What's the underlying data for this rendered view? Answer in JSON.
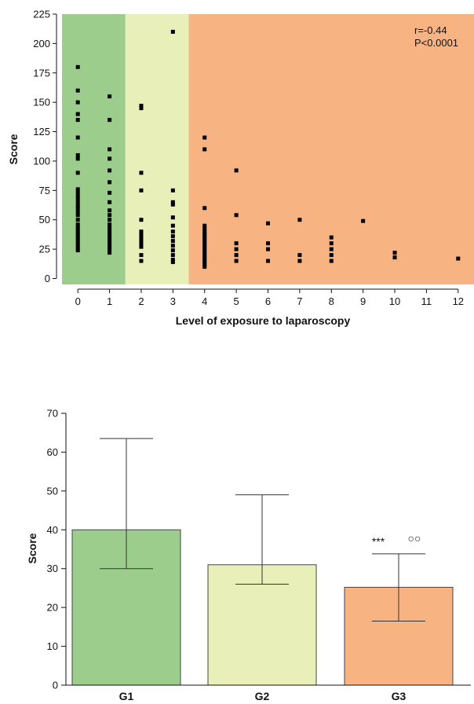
{
  "chart_data": [
    {
      "type": "scatter",
      "xlabel": "Level of exposure to laparoscopy",
      "ylabel": "Score",
      "xlim": [
        -0.5,
        12.5
      ],
      "ylim": [
        -5,
        225
      ],
      "xticks": [
        "0",
        "1",
        "2",
        "3",
        "4",
        "5",
        "6",
        "7",
        "8",
        "9",
        "10",
        "11",
        "12"
      ],
      "yticks": [
        "0",
        "25",
        "50",
        "75",
        "100",
        "125",
        "150",
        "175",
        "200",
        "225"
      ],
      "grid": false,
      "annotations": [
        "r=-0.44",
        "P<0.0001"
      ],
      "regions": [
        {
          "from": -0.5,
          "to": 1.5,
          "color": "#9ccd8d"
        },
        {
          "from": 1.5,
          "to": 3.5,
          "color": "#e9efb9"
        },
        {
          "from": 3.5,
          "to": 12.5,
          "color": "#f7b482"
        }
      ],
      "series": [
        {
          "color": "#000000",
          "points": [
            [
              0,
              180
            ],
            [
              0,
              160
            ],
            [
              0,
              150
            ],
            [
              0,
              140
            ],
            [
              0,
              135
            ],
            [
              0,
              120
            ],
            [
              0,
              105
            ],
            [
              0,
              102
            ],
            [
              0,
              90
            ],
            [
              0,
              76
            ],
            [
              0,
              73
            ],
            [
              0,
              70
            ],
            [
              0,
              68
            ],
            [
              0,
              65
            ],
            [
              0,
              62
            ],
            [
              0,
              60
            ],
            [
              0,
              57
            ],
            [
              0,
              54
            ],
            [
              0,
              50
            ],
            [
              0,
              46
            ],
            [
              0,
              44
            ],
            [
              0,
              42
            ],
            [
              0,
              40
            ],
            [
              0,
              38
            ],
            [
              0,
              36
            ],
            [
              0,
              34
            ],
            [
              0,
              32
            ],
            [
              0,
              30
            ],
            [
              0,
              28
            ],
            [
              0,
              26
            ],
            [
              0,
              24
            ],
            [
              1,
              155
            ],
            [
              1,
              135
            ],
            [
              1,
              110
            ],
            [
              1,
              102
            ],
            [
              1,
              92
            ],
            [
              1,
              82
            ],
            [
              1,
              73
            ],
            [
              1,
              65
            ],
            [
              1,
              58
            ],
            [
              1,
              54
            ],
            [
              1,
              50
            ],
            [
              1,
              46
            ],
            [
              1,
              44
            ],
            [
              1,
              42
            ],
            [
              1,
              40
            ],
            [
              1,
              38
            ],
            [
              1,
              36
            ],
            [
              1,
              34
            ],
            [
              1,
              32
            ],
            [
              1,
              30
            ],
            [
              1,
              28
            ],
            [
              1,
              26
            ],
            [
              1,
              24
            ],
            [
              1,
              22
            ],
            [
              2,
              147
            ],
            [
              2,
              145
            ],
            [
              2,
              90
            ],
            [
              2,
              75
            ],
            [
              2,
              50
            ],
            [
              2,
              40
            ],
            [
              2,
              37
            ],
            [
              2,
              35
            ],
            [
              2,
              32
            ],
            [
              2,
              30
            ],
            [
              2,
              27
            ],
            [
              2,
              20
            ],
            [
              2,
              15
            ],
            [
              3,
              210
            ],
            [
              3,
              75
            ],
            [
              3,
              65
            ],
            [
              3,
              63
            ],
            [
              3,
              52
            ],
            [
              3,
              45
            ],
            [
              3,
              40
            ],
            [
              3,
              36
            ],
            [
              3,
              32
            ],
            [
              3,
              28
            ],
            [
              3,
              24
            ],
            [
              3,
              20
            ],
            [
              3,
              16
            ],
            [
              3,
              14
            ],
            [
              4,
              120
            ],
            [
              4,
              110
            ],
            [
              4,
              60
            ],
            [
              4,
              45
            ],
            [
              4,
              42
            ],
            [
              4,
              40
            ],
            [
              4,
              38
            ],
            [
              4,
              36
            ],
            [
              4,
              34
            ],
            [
              4,
              32
            ],
            [
              4,
              30
            ],
            [
              4,
              28
            ],
            [
              4,
              26
            ],
            [
              4,
              24
            ],
            [
              4,
              22
            ],
            [
              4,
              20
            ],
            [
              4,
              18
            ],
            [
              4,
              16
            ],
            [
              4,
              14
            ],
            [
              4,
              12
            ],
            [
              4,
              10
            ],
            [
              5,
              92
            ],
            [
              5,
              54
            ],
            [
              5,
              30
            ],
            [
              5,
              25
            ],
            [
              5,
              20
            ],
            [
              5,
              15
            ],
            [
              6,
              47
            ],
            [
              6,
              30
            ],
            [
              6,
              25
            ],
            [
              6,
              15
            ],
            [
              7,
              50
            ],
            [
              7,
              20
            ],
            [
              7,
              15
            ],
            [
              8,
              35
            ],
            [
              8,
              30
            ],
            [
              8,
              25
            ],
            [
              8,
              20
            ],
            [
              8,
              15
            ],
            [
              9,
              49
            ],
            [
              10,
              22
            ],
            [
              10,
              18
            ],
            [
              12,
              17
            ]
          ]
        }
      ]
    },
    {
      "type": "bar",
      "ylabel": "Score",
      "ylim": [
        0,
        70
      ],
      "yticks": [
        "0",
        "10",
        "20",
        "30",
        "40",
        "50",
        "60",
        "70"
      ],
      "categories": [
        "G1",
        "G2",
        "G3"
      ],
      "values": [
        40,
        31,
        25.2
      ],
      "error_low": [
        30,
        26,
        16.5
      ],
      "error_high": [
        63.5,
        49,
        33.8
      ],
      "colors": [
        "#9ccd8d",
        "#e9efb9",
        "#f7b482"
      ],
      "annotations": [
        {
          "category": "G3",
          "text": "***"
        },
        {
          "category": "G3",
          "text": "○○"
        }
      ],
      "grid": false
    }
  ]
}
